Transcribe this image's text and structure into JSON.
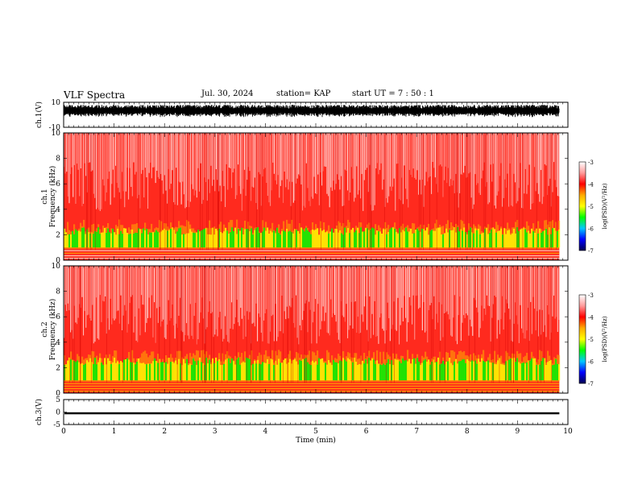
{
  "header": {
    "title": "VLF Spectra",
    "date": "Jul. 30, 2024",
    "station": "station= KAP",
    "start": "start  UT =   7 : 50 : 1"
  },
  "colors": {
    "spectrogram_background": "#ff2a1e",
    "colormap": [
      "#ffffff",
      "#ff9a9a",
      "#ff0000",
      "#ffaa00",
      "#ffff00",
      "#00ff00",
      "#00c8ff",
      "#0000ff",
      "#000050"
    ]
  },
  "chart_data": [
    {
      "type": "line",
      "panel": "ch1-waveform",
      "ylabel": "ch.1(V)",
      "ylim": [
        -10,
        10
      ],
      "yticks": [
        "10",
        "-10"
      ],
      "x_range_min": [
        0,
        10
      ],
      "data_extent_min": 9.83,
      "series": [
        {
          "name": "ch.1",
          "envelope_volts": [
            -2,
            8
          ]
        }
      ]
    },
    {
      "type": "heatmap",
      "panel": "ch1-spectrogram",
      "ylabel": "ch.1\nFrequency  (kHz)",
      "ylim_khz": [
        0,
        10
      ],
      "yticks": [
        "0",
        "2",
        "4",
        "6",
        "8",
        "10"
      ],
      "log_psd_bands": [
        {
          "freq_khz": [
            0,
            1.0
          ],
          "level": "-4.5 (orange/red lines)"
        },
        {
          "freq_khz": [
            1.0,
            2.0
          ],
          "level": "-5 to -5.5 (green/yellow)"
        },
        {
          "freq_khz": [
            2.0,
            5.0
          ],
          "level": "-4 (red/orange)"
        },
        {
          "freq_khz": [
            5.0,
            10.0
          ],
          "level": "-3.5 (red to white)"
        }
      ],
      "colorbar": {
        "label": "log(PSD)(V²/Hz)",
        "range": [
          -7,
          -3
        ],
        "ticks": [
          "-3",
          "-4",
          "-5",
          "-6",
          "-7"
        ]
      }
    },
    {
      "type": "heatmap",
      "panel": "ch2-spectrogram",
      "ylabel": "ch.2\nFrequency  (kHz)",
      "ylim_khz": [
        0,
        10
      ],
      "yticks": [
        "0",
        "2",
        "4",
        "6",
        "8",
        "10"
      ],
      "log_psd_bands": [
        {
          "freq_khz": [
            0,
            1.0
          ],
          "level": "-4.5 (orange/red lines)"
        },
        {
          "freq_khz": [
            1.0,
            2.2
          ],
          "level": "-5 to -5.5 (green/yellow)"
        },
        {
          "freq_khz": [
            2.2,
            4.0
          ],
          "level": "-4 (red/orange)"
        },
        {
          "freq_khz": [
            4.0,
            10.0
          ],
          "level": "-3.5 (red to white)"
        }
      ],
      "colorbar": {
        "label": "log(PSD)(V²/Hz)",
        "range": [
          -7,
          -3
        ],
        "ticks": [
          "-3",
          "-4",
          "-5",
          "-6",
          "-7"
        ]
      }
    },
    {
      "type": "line",
      "panel": "ch3-waveform",
      "ylabel": "ch.3(V)",
      "ylim": [
        -5,
        5
      ],
      "yticks": [
        "5",
        "0",
        "-5"
      ],
      "series": [
        {
          "name": "ch.3",
          "envelope_volts": [
            -0.9,
            -0.1
          ]
        }
      ]
    }
  ],
  "x_axis": {
    "label": "Time  (min)",
    "range": [
      0,
      10
    ],
    "ticks": [
      "0",
      "1",
      "2",
      "3",
      "4",
      "5",
      "6",
      "7",
      "8",
      "9",
      "10"
    ]
  }
}
